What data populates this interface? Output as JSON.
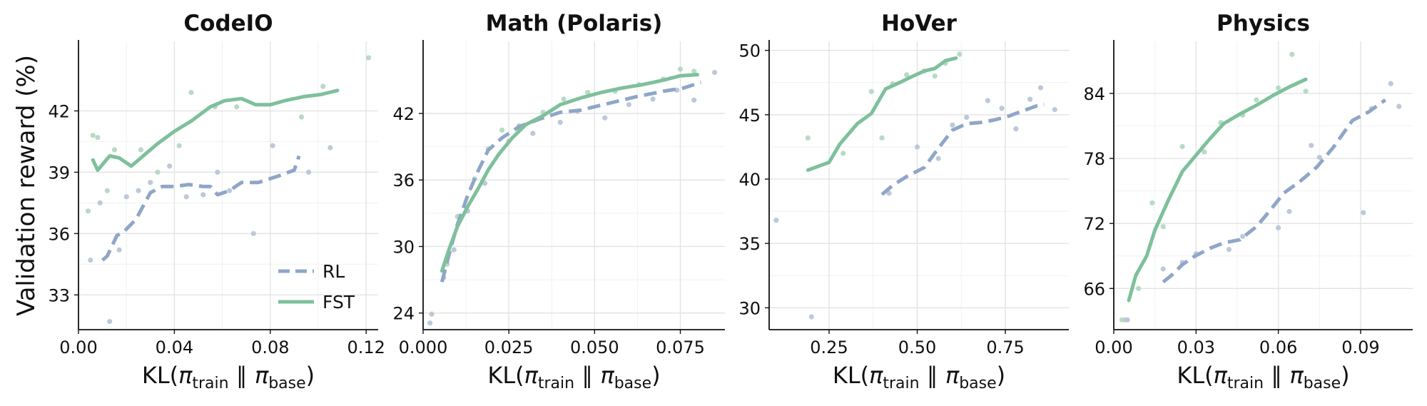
{
  "figure": {
    "ylabel": "Validation reward (%)",
    "xlabel_text": "KL(",
    "xlabel_pi1": "π",
    "xlabel_sub1": "train",
    "xlabel_sep": "∥",
    "xlabel_pi2": "π",
    "xlabel_sub2": "base",
    "xlabel_close": ")"
  },
  "legend": {
    "rl_label": "RL",
    "fst_label": "FST",
    "placement": "lower-right of first panel"
  },
  "colors": {
    "rl": "#8fa6c8",
    "fst": "#7ec09b",
    "rl_point": "#b9c6d8",
    "fst_point": "#b3d9c1",
    "grid": "#e3e3e3"
  },
  "chart_data": [
    {
      "type": "line",
      "title": "CodeIO",
      "xlabel": "KL(π_train ∥ π_base)",
      "ylabel": "Validation reward (%)",
      "xlim": [
        0.0,
        0.125
      ],
      "ylim": [
        31.3,
        45.4
      ],
      "xticks": [
        0.0,
        0.04,
        0.08,
        0.12
      ],
      "xtick_labels": [
        "0.00",
        "0.04",
        "0.08",
        "0.12"
      ],
      "yticks": [
        33,
        36,
        39,
        42
      ],
      "ytick_labels": [
        "33",
        "36",
        "39",
        "42"
      ],
      "grid": true,
      "legend": true,
      "series": [
        {
          "name": "RL",
          "style": "dashed",
          "x": [
            0.01,
            0.012,
            0.016,
            0.019,
            0.024,
            0.03,
            0.035,
            0.04,
            0.046,
            0.052,
            0.055,
            0.058,
            0.063,
            0.068,
            0.075,
            0.083,
            0.09,
            0.092
          ],
          "y": [
            34.7,
            34.9,
            35.9,
            36.1,
            36.7,
            38.0,
            38.3,
            38.3,
            38.4,
            38.3,
            38.3,
            37.9,
            38.1,
            38.5,
            38.5,
            38.8,
            39.1,
            39.8
          ]
        },
        {
          "name": "FST",
          "style": "solid",
          "x": [
            0.006,
            0.008,
            0.013,
            0.017,
            0.022,
            0.027,
            0.033,
            0.04,
            0.047,
            0.055,
            0.061,
            0.068,
            0.074,
            0.08,
            0.086,
            0.094,
            0.101,
            0.108
          ],
          "y": [
            39.6,
            39.1,
            39.8,
            39.7,
            39.3,
            39.8,
            40.4,
            41.0,
            41.5,
            42.2,
            42.5,
            42.6,
            42.3,
            42.3,
            42.5,
            42.7,
            42.8,
            43.0
          ]
        }
      ],
      "scatter": [
        {
          "name": "RL",
          "x": [
            0.005,
            0.009,
            0.013,
            0.017,
            0.02,
            0.025,
            0.03,
            0.038,
            0.045,
            0.052,
            0.058,
            0.063,
            0.073,
            0.081,
            0.096,
            0.105
          ],
          "y": [
            34.7,
            37.5,
            31.7,
            35.2,
            37.8,
            38.1,
            38.5,
            39.3,
            37.8,
            37.9,
            39.0,
            38.1,
            36.0,
            40.3,
            39.0,
            40.2
          ]
        },
        {
          "name": "FST",
          "x": [
            0.004,
            0.006,
            0.008,
            0.012,
            0.015,
            0.026,
            0.033,
            0.042,
            0.047,
            0.057,
            0.066,
            0.093,
            0.102,
            0.121
          ],
          "y": [
            37.1,
            40.8,
            40.7,
            38.1,
            40.1,
            40.1,
            39.0,
            40.3,
            42.9,
            42.2,
            42.2,
            41.7,
            43.2,
            44.6
          ]
        }
      ]
    },
    {
      "type": "line",
      "title": "Math (Polaris)",
      "xlabel": "KL(π_train ∥ π_base)",
      "ylabel": "",
      "xlim": [
        0.0,
        0.088
      ],
      "ylim": [
        22.5,
        48.5
      ],
      "xticks": [
        0.0,
        0.025,
        0.05,
        0.075
      ],
      "xtick_labels": [
        "0.000",
        "0.025",
        "0.050",
        "0.075"
      ],
      "yticks": [
        24,
        30,
        36,
        42
      ],
      "ytick_labels": [
        "24",
        "30",
        "36",
        "42"
      ],
      "grid": true,
      "legend": false,
      "series": [
        {
          "name": "RL",
          "style": "dashed",
          "x": [
            0.0055,
            0.0075,
            0.01,
            0.013,
            0.016,
            0.019,
            0.023,
            0.028,
            0.034,
            0.04,
            0.046,
            0.054,
            0.062,
            0.07,
            0.076,
            0.081
          ],
          "y": [
            26.8,
            29.2,
            32.0,
            34.6,
            36.8,
            38.7,
            39.8,
            40.8,
            41.5,
            42.1,
            42.3,
            42.9,
            43.5,
            44.0,
            44.3,
            44.8
          ]
        },
        {
          "name": "FST",
          "style": "solid",
          "x": [
            0.0055,
            0.0075,
            0.01,
            0.013,
            0.016,
            0.019,
            0.022,
            0.026,
            0.03,
            0.035,
            0.04,
            0.046,
            0.052,
            0.058,
            0.064,
            0.07,
            0.075,
            0.08
          ],
          "y": [
            27.8,
            29.7,
            31.8,
            33.6,
            35.2,
            36.9,
            38.3,
            39.8,
            41.0,
            41.8,
            42.8,
            43.4,
            43.9,
            44.3,
            44.6,
            45.0,
            45.4,
            45.5
          ]
        }
      ],
      "scatter": [
        {
          "name": "RL",
          "x": [
            0.002,
            0.0025,
            0.006,
            0.009,
            0.013,
            0.018,
            0.025,
            0.032,
            0.04,
            0.045,
            0.053,
            0.06,
            0.067,
            0.074,
            0.079,
            0.085
          ],
          "y": [
            23.1,
            23.9,
            27.2,
            29.7,
            33.2,
            35.7,
            39.5,
            40.2,
            41.2,
            42.2,
            41.6,
            42.8,
            43.3,
            44.1,
            43.2,
            45.7
          ]
        },
        {
          "name": "FST",
          "x": [
            0.007,
            0.01,
            0.015,
            0.019,
            0.023,
            0.028,
            0.035,
            0.041,
            0.048,
            0.056,
            0.063,
            0.07,
            0.075,
            0.079
          ],
          "y": [
            28.4,
            32.7,
            36.1,
            38.8,
            40.5,
            40.9,
            42.1,
            43.3,
            43.9,
            44.0,
            44.6,
            45.1,
            46.0,
            45.8
          ]
        }
      ]
    },
    {
      "type": "line",
      "title": "HoVer",
      "xlabel": "KL(π_train ∥ π_base)",
      "ylabel": "",
      "xlim": [
        0.08,
        0.93
      ],
      "ylim": [
        28.3,
        50.7
      ],
      "xticks": [
        0.25,
        0.5,
        0.75
      ],
      "xtick_labels": [
        "0.25",
        "0.50",
        "0.75"
      ],
      "yticks": [
        30,
        35,
        40,
        45,
        50
      ],
      "ytick_labels": [
        "30",
        "35",
        "40",
        "45",
        "50"
      ],
      "grid": true,
      "legend": false,
      "series": [
        {
          "name": "RL",
          "style": "dashed",
          "x": [
            0.4,
            0.43,
            0.47,
            0.52,
            0.56,
            0.6,
            0.64,
            0.68,
            0.72,
            0.76,
            0.8,
            0.84,
            0.86
          ],
          "y": [
            38.8,
            39.5,
            40.2,
            40.9,
            42.4,
            43.8,
            44.3,
            44.4,
            44.6,
            44.9,
            45.3,
            45.7,
            45.8
          ]
        },
        {
          "name": "FST",
          "style": "solid",
          "x": [
            0.19,
            0.25,
            0.28,
            0.33,
            0.37,
            0.41,
            0.45,
            0.48,
            0.52,
            0.55,
            0.58,
            0.61
          ],
          "y": [
            40.7,
            41.3,
            42.7,
            44.3,
            45.1,
            47.0,
            47.5,
            47.9,
            48.4,
            48.6,
            49.2,
            49.4
          ]
        }
      ],
      "scatter": [
        {
          "name": "RL",
          "x": [
            0.1,
            0.2,
            0.42,
            0.5,
            0.56,
            0.6,
            0.64,
            0.7,
            0.74,
            0.78,
            0.82,
            0.85,
            0.89
          ],
          "y": [
            36.8,
            29.3,
            38.9,
            42.5,
            41.6,
            44.2,
            44.8,
            46.1,
            45.5,
            43.9,
            46.2,
            47.1,
            45.4
          ]
        },
        {
          "name": "FST",
          "x": [
            0.19,
            0.29,
            0.37,
            0.4,
            0.43,
            0.47,
            0.52,
            0.55,
            0.58,
            0.62
          ],
          "y": [
            43.2,
            42.0,
            46.8,
            43.2,
            47.4,
            48.1,
            48.4,
            48.0,
            49.0,
            49.7
          ]
        }
      ]
    },
    {
      "type": "line",
      "title": "Physics",
      "xlabel": "KL(π_train ∥ π_base)",
      "ylabel": "",
      "xlim": [
        0.0,
        0.109
      ],
      "ylim": [
        62.2,
        88.8
      ],
      "xticks": [
        0.0,
        0.03,
        0.06,
        0.09
      ],
      "xtick_labels": [
        "0.00",
        "0.03",
        "0.06",
        "0.09"
      ],
      "yticks": [
        66,
        72,
        78,
        84
      ],
      "ytick_labels": [
        "66",
        "72",
        "78",
        "84"
      ],
      "grid": true,
      "legend": false,
      "series": [
        {
          "name": "RL",
          "style": "dashed",
          "x": [
            0.018,
            0.021,
            0.025,
            0.029,
            0.035,
            0.04,
            0.046,
            0.052,
            0.057,
            0.062,
            0.068,
            0.074,
            0.08,
            0.087,
            0.093,
            0.099
          ],
          "y": [
            66.6,
            67.2,
            68.2,
            68.9,
            69.7,
            70.2,
            70.5,
            71.7,
            73.2,
            74.8,
            75.9,
            77.2,
            79.0,
            81.5,
            82.3,
            83.4
          ]
        },
        {
          "name": "FST",
          "style": "solid",
          "x": [
            0.0055,
            0.008,
            0.012,
            0.015,
            0.02,
            0.025,
            0.03,
            0.035,
            0.04,
            0.046,
            0.052,
            0.058,
            0.064,
            0.07
          ],
          "y": [
            64.9,
            67.2,
            69.0,
            71.4,
            74.2,
            76.8,
            78.3,
            79.8,
            81.2,
            82.1,
            82.9,
            83.8,
            84.6,
            85.3
          ]
        }
      ],
      "scatter": [
        {
          "name": "RL",
          "x": [
            0.004,
            0.005,
            0.018,
            0.025,
            0.03,
            0.042,
            0.047,
            0.06,
            0.064,
            0.072,
            0.075,
            0.091,
            0.094,
            0.101,
            0.104
          ],
          "y": [
            63.1,
            63.1,
            67.8,
            68.4,
            69.2,
            69.6,
            70.8,
            71.6,
            73.1,
            79.2,
            78.1,
            73.0,
            82.6,
            84.9,
            82.8
          ]
        },
        {
          "name": "FST",
          "x": [
            0.003,
            0.009,
            0.014,
            0.018,
            0.025,
            0.033,
            0.039,
            0.047,
            0.052,
            0.06,
            0.065,
            0.07
          ],
          "y": [
            63.1,
            66.0,
            73.9,
            71.7,
            79.1,
            78.6,
            81.3,
            82.0,
            83.4,
            84.5,
            87.6,
            84.2
          ]
        }
      ]
    }
  ]
}
